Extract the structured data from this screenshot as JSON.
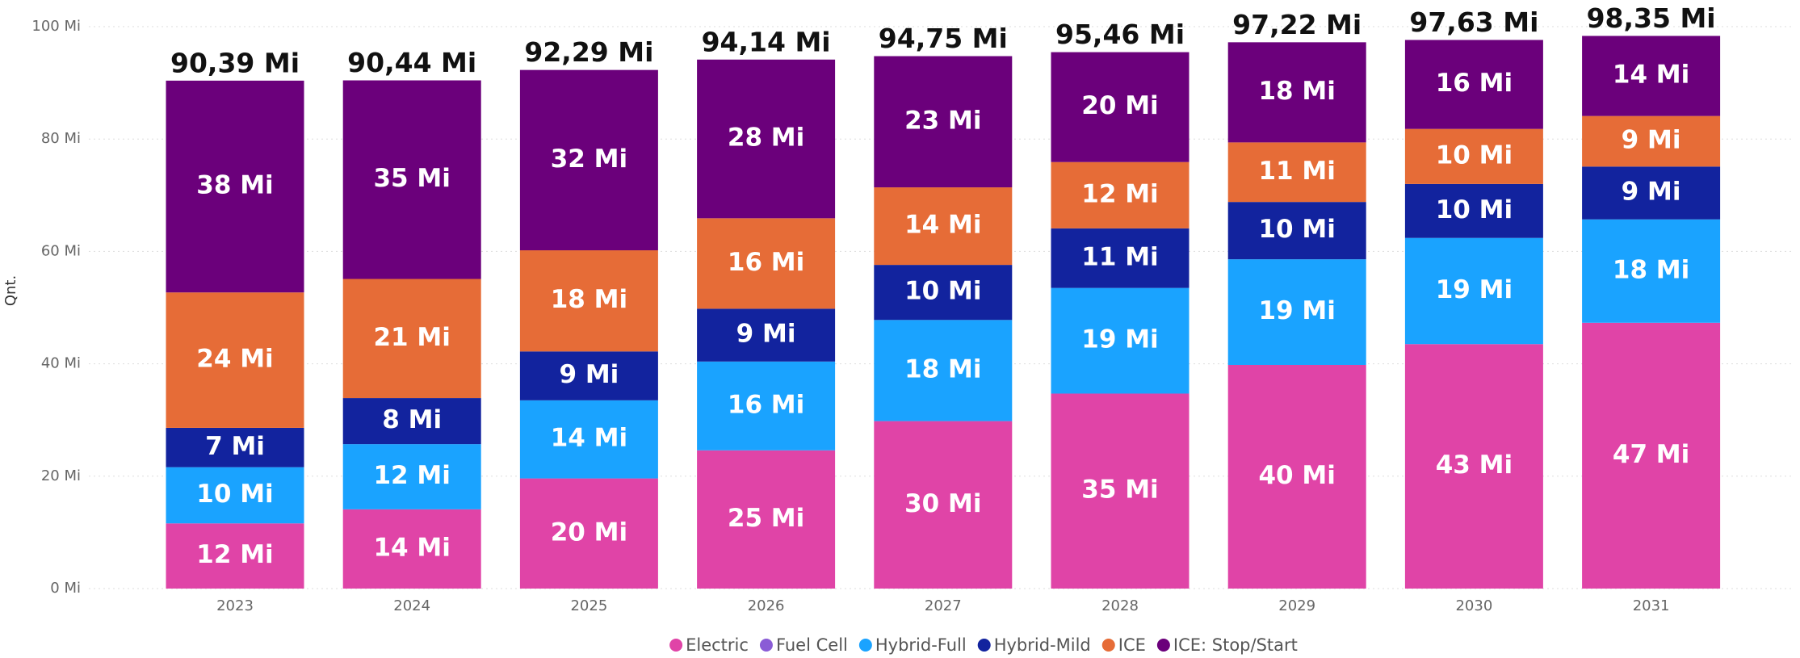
{
  "chart_data": {
    "type": "stacked_bar",
    "y_label": "Qnt.",
    "categories": [
      "2023",
      "2024",
      "2025",
      "2026",
      "2027",
      "2028",
      "2029",
      "2030",
      "2031"
    ],
    "series": [
      {
        "name": "Electric",
        "color": "#e044a7",
        "values": [
          11.6,
          14.1,
          19.6,
          24.6,
          29.8,
          34.7,
          39.8,
          43.5,
          47.3
        ],
        "value_labels": [
          "12 Mi",
          "14 Mi",
          "20 Mi",
          "25 Mi",
          "30 Mi",
          "35 Mi",
          "40 Mi",
          "43 Mi",
          "47 Mi"
        ]
      },
      {
        "name": "Fuel Cell",
        "color": "#8a5cd6",
        "values": [
          0,
          0,
          0,
          0,
          0,
          0,
          0,
          0,
          0
        ]
      },
      {
        "name": "Hybrid-Full",
        "color": "#1aa3ff",
        "values": [
          10.0,
          11.6,
          13.9,
          15.8,
          18.0,
          18.8,
          18.8,
          18.9,
          18.4
        ],
        "value_labels": [
          "10 Mi",
          "12 Mi",
          "14 Mi",
          "16 Mi",
          "18 Mi",
          "19 Mi",
          "19 Mi",
          "19 Mi",
          "18 Mi"
        ]
      },
      {
        "name": "Hybrid-Mild",
        "color": "#12239e",
        "values": [
          7.0,
          8.2,
          8.7,
          9.4,
          9.8,
          10.6,
          10.2,
          9.6,
          9.4
        ],
        "value_labels": [
          "7 Mi",
          "8 Mi",
          "9 Mi",
          "9 Mi",
          "10 Mi",
          "11 Mi",
          "10 Mi",
          "10 Mi",
          "9 Mi"
        ]
      },
      {
        "name": "ICE",
        "color": "#e66c37",
        "values": [
          24.1,
          21.2,
          18.0,
          16.1,
          13.8,
          11.8,
          10.6,
          9.8,
          9.0
        ],
        "value_labels": [
          "24 Mi",
          "21 Mi",
          "18 Mi",
          "16 Mi",
          "14 Mi",
          "12 Mi",
          "11 Mi",
          "10 Mi",
          "9 Mi"
        ]
      },
      {
        "name": "ICE: Stop/Start",
        "color": "#6b007b",
        "values": [
          37.69,
          35.34,
          32.09,
          28.24,
          23.35,
          19.56,
          17.82,
          15.83,
          14.25
        ],
        "value_labels": [
          "38 Mi",
          "35 Mi",
          "32 Mi",
          "28 Mi",
          "23 Mi",
          "20 Mi",
          "18 Mi",
          "16 Mi",
          "14 Mi"
        ]
      }
    ],
    "totals": [
      90.39,
      90.44,
      92.29,
      94.14,
      94.75,
      95.46,
      97.22,
      97.63,
      98.35
    ],
    "total_labels": [
      "90,39 Mi",
      "90,44 Mi",
      "92,29 Mi",
      "94,14 Mi",
      "94,75 Mi",
      "95,46 Mi",
      "97,22 Mi",
      "97,63 Mi",
      "98,35 Mi"
    ],
    "ylim": [
      0,
      100
    ],
    "yticks": [
      {
        "value": 0,
        "label": "0 Mi"
      },
      {
        "value": 20,
        "label": "20 Mi"
      },
      {
        "value": 40,
        "label": "40 Mi"
      },
      {
        "value": 60,
        "label": "60 Mi"
      },
      {
        "value": 80,
        "label": "80 Mi"
      },
      {
        "value": 100,
        "label": "100 Mi"
      }
    ],
    "grid": true,
    "legend": "bottom"
  }
}
